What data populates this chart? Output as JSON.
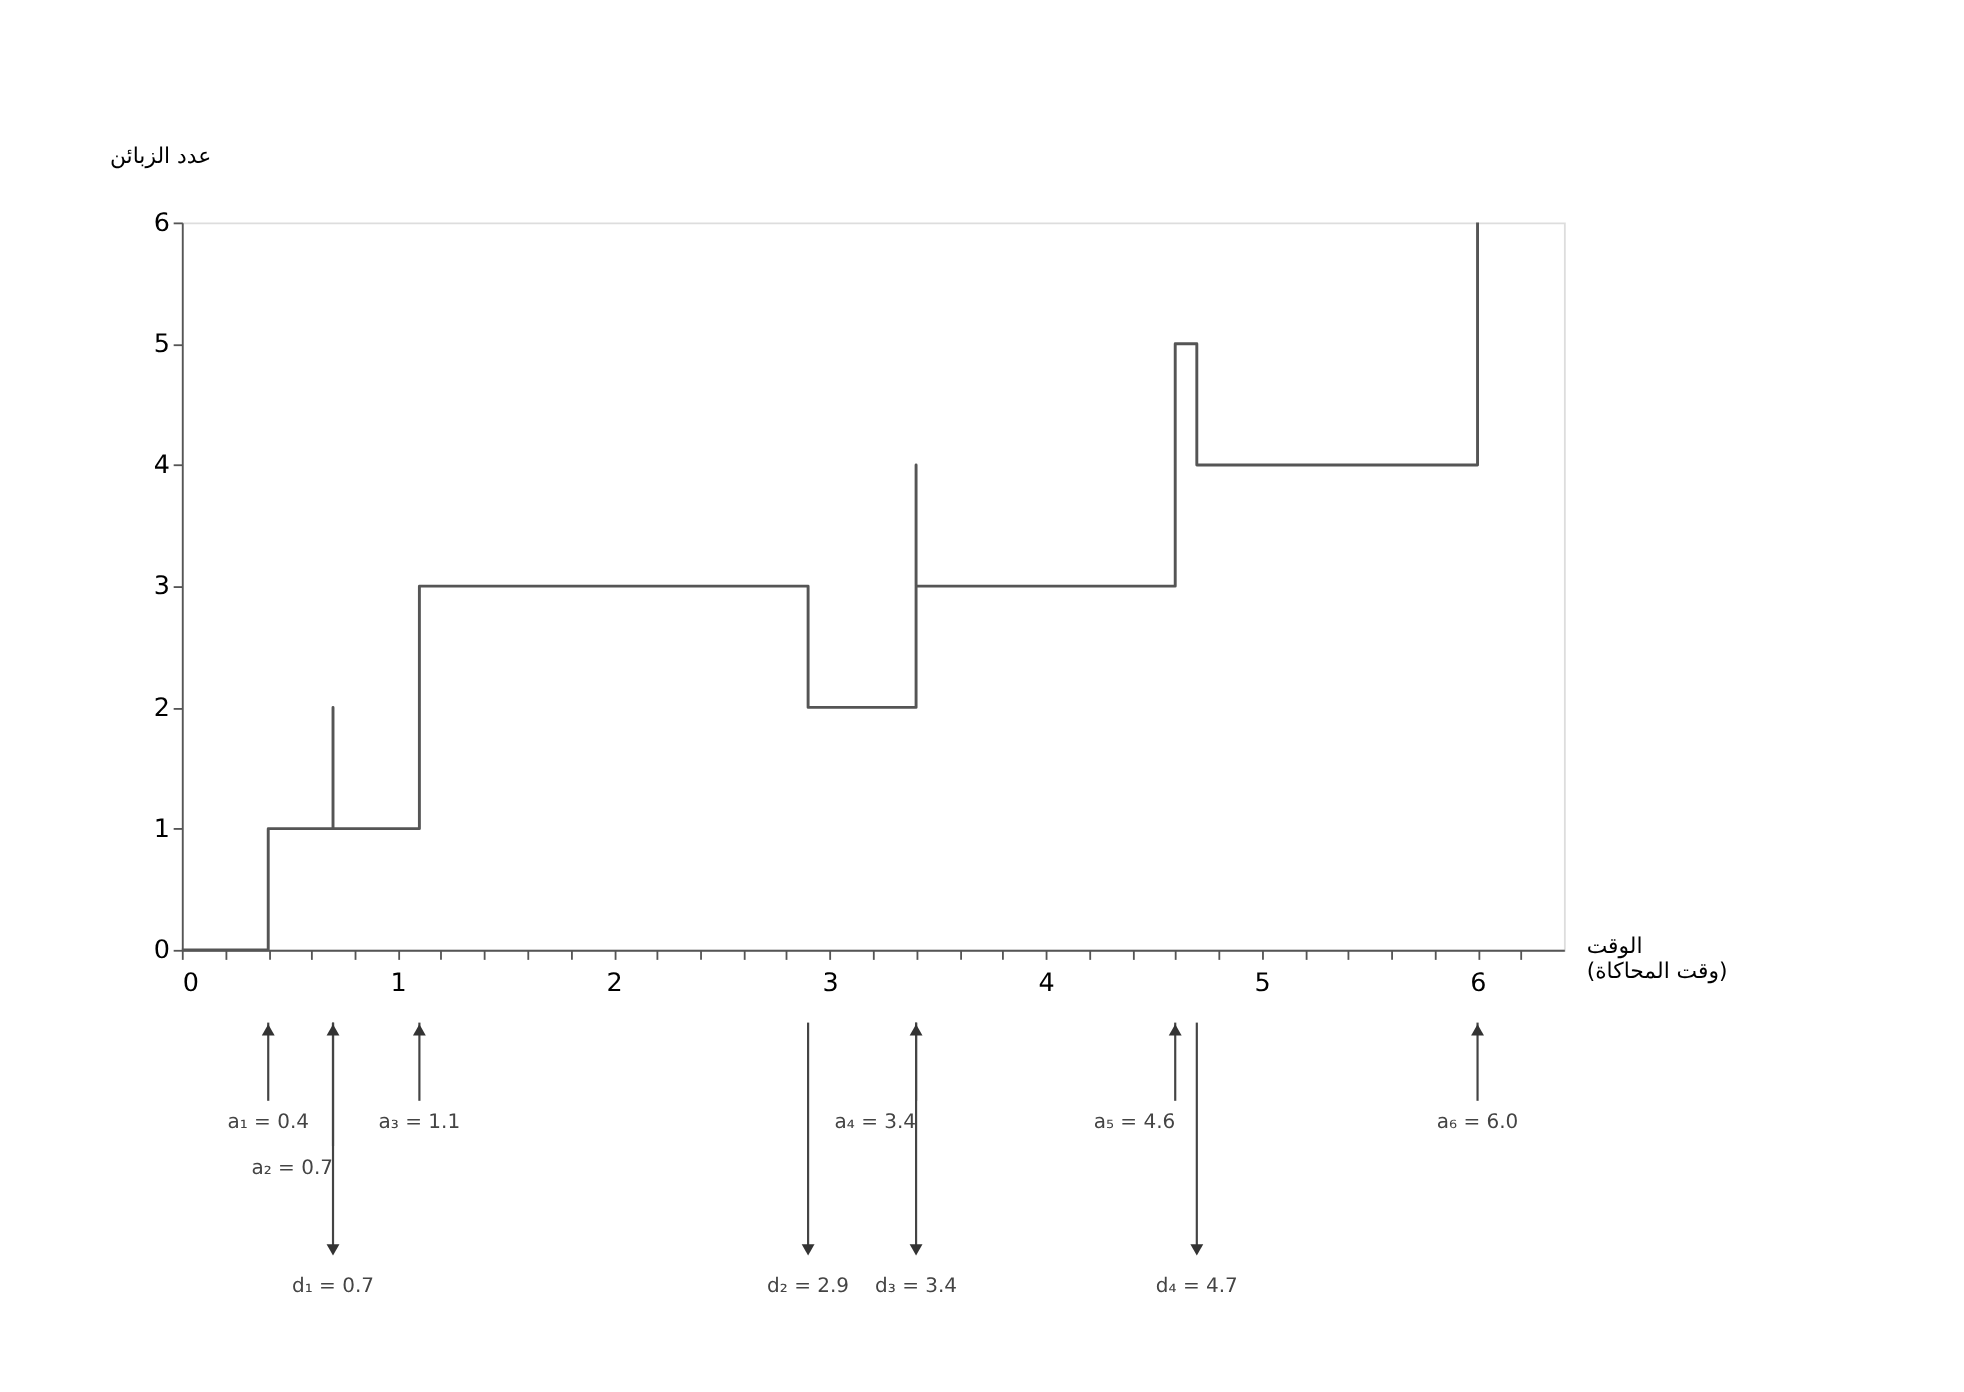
{
  "chart_data": {
    "type": "step",
    "ylabel": "عدد الزبائن",
    "xlabel": "الوقت\n(وقت المحاكاة)",
    "x": [
      0,
      0.4,
      0.7,
      0.7,
      1.1,
      2.9,
      3.4,
      3.4,
      4.6,
      4.7,
      6.0
    ],
    "values": [
      0,
      1,
      2,
      1,
      3,
      2,
      4,
      3,
      5,
      4,
      6
    ],
    "color": "#555555",
    "xlim": [
      0,
      6.4
    ],
    "ylim": [
      0,
      6
    ],
    "xticks": [
      0,
      {
        "value": 0.2,
        "label": null
      },
      {
        "value": 0.4,
        "label": null
      },
      {
        "value": 0.6,
        "label": null
      },
      {
        "value": 0.8,
        "label": null
      },
      1,
      {
        "value": 1.2,
        "label": null
      },
      {
        "value": 1.4,
        "label": null
      },
      {
        "value": 1.6,
        "label": null
      },
      {
        "value": 1.8,
        "label": null
      },
      2,
      {
        "value": 2.2,
        "label": null
      },
      {
        "value": 2.4,
        "label": null
      },
      {
        "value": 2.6,
        "label": null
      },
      {
        "value": 2.8,
        "label": null
      },
      3,
      {
        "value": 3.2,
        "label": null
      },
      {
        "value": 3.4,
        "label": null
      },
      {
        "value": 3.6,
        "label": null
      },
      {
        "value": 3.8,
        "label": null
      },
      4,
      {
        "value": 4.2,
        "label": null
      },
      {
        "value": 4.4,
        "label": null
      },
      {
        "value": 4.6,
        "label": null
      },
      {
        "value": 4.8,
        "label": null
      },
      5,
      {
        "value": 5.2,
        "label": null
      },
      {
        "value": 5.4,
        "label": null
      },
      {
        "value": 5.6,
        "label": null
      },
      {
        "value": 5.8,
        "label": null
      },
      6,
      {
        "value": 6.2,
        "label": null
      }
    ],
    "yticks": [
      0,
      1,
      2,
      3,
      4,
      5,
      6
    ],
    "grid": false,
    "annotations": [
      "a₁ = 0.4",
      "a₂ = 0.7",
      "a₃ = 1.1",
      "a₄ = 3.4",
      "a₅ = 4.6",
      "a₆ = 6.0",
      "d₁ = 0.7",
      "d₂ = 2.9",
      "d₃ = 3.4",
      "d₄ = 4.7"
    ]
  }
}
